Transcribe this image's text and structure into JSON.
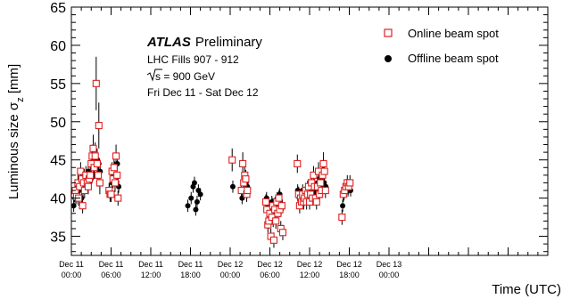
{
  "chart_data": {
    "type": "scatter",
    "ylabel": "Luminous size σ",
    "ylabel_sub": "z",
    "ylabel_unit": " [mm]",
    "xlabel": "Time (UTC)",
    "ylim": [
      32.5,
      65
    ],
    "y_major_ticks": [
      35,
      40,
      45,
      50,
      55,
      60,
      65
    ],
    "xlim_hours": [
      0,
      72
    ],
    "x_major_ticks": [
      {
        "h": 0,
        "line1": "Dec 11",
        "line2": "00:00"
      },
      {
        "h": 6,
        "line1": "Dec 11",
        "line2": "06:00"
      },
      {
        "h": 12,
        "line1": "Dec 11",
        "line2": "12:00"
      },
      {
        "h": 18,
        "line1": "Dec 11",
        "line2": "18:00"
      },
      {
        "h": 24,
        "line1": "Dec 12",
        "line2": "00:00"
      },
      {
        "h": 30,
        "line1": "Dec 12",
        "line2": "06:00"
      },
      {
        "h": 36,
        "line1": "Dec 12",
        "line2": "12:00"
      },
      {
        "h": 42,
        "line1": "Dec 12",
        "line2": "18:00"
      },
      {
        "h": 48,
        "line1": "Dec 13",
        "line2": "00:00"
      }
    ],
    "annotation": {
      "atlas": "ATLAS",
      "prelim": "Preliminary",
      "fills": "LHC Fills 907 - 912",
      "energy_root": "s",
      "energy_rest": " = 900 GeV",
      "dates": "Fri Dec 11 - Sat Dec 12"
    },
    "legend_position": "top-right",
    "series": [
      {
        "name": "Online beam spot",
        "marker": "open-square",
        "color": "#dd2222",
        "points": [
          {
            "x": 0.45,
            "y": 40.5,
            "e": 1.0
          },
          {
            "x": 0.6,
            "y": 41.0,
            "e": 1.0
          },
          {
            "x": 0.8,
            "y": 40.2,
            "e": 1.0
          },
          {
            "x": 1.0,
            "y": 42.0,
            "e": 1.2
          },
          {
            "x": 1.1,
            "y": 40.0,
            "e": 1.0
          },
          {
            "x": 1.25,
            "y": 41.5,
            "e": 1.0
          },
          {
            "x": 1.4,
            "y": 43.5,
            "e": 1.2
          },
          {
            "x": 1.6,
            "y": 42.5,
            "e": 1.0
          },
          {
            "x": 1.7,
            "y": 39.0,
            "e": 1.0
          },
          {
            "x": 1.85,
            "y": 42.0,
            "e": 1.0
          },
          {
            "x": 2.0,
            "y": 41.0,
            "e": 1.0
          },
          {
            "x": 2.2,
            "y": 43.0,
            "e": 1.2
          },
          {
            "x": 2.4,
            "y": 42.0,
            "e": 1.0
          },
          {
            "x": 2.55,
            "y": 41.5,
            "e": 1.0
          },
          {
            "x": 2.7,
            "y": 42.5,
            "e": 1.2
          },
          {
            "x": 2.85,
            "y": 43.0,
            "e": 1.2
          },
          {
            "x": 3.0,
            "y": 44.5,
            "e": 1.5
          },
          {
            "x": 3.15,
            "y": 45.5,
            "e": 1.5
          },
          {
            "x": 3.3,
            "y": 46.5,
            "e": 1.8
          },
          {
            "x": 3.45,
            "y": 44.0,
            "e": 1.5
          },
          {
            "x": 3.6,
            "y": 45.5,
            "e": 1.8
          },
          {
            "x": 3.75,
            "y": 55.0,
            "e": 3.5
          },
          {
            "x": 3.9,
            "y": 44.5,
            "e": 2.0
          },
          {
            "x": 4.05,
            "y": 43.0,
            "e": 1.5
          },
          {
            "x": 4.15,
            "y": 49.5,
            "e": 3.0
          },
          {
            "x": 4.3,
            "y": 42.0,
            "e": 1.5
          },
          {
            "x": 5.7,
            "y": 41.0,
            "e": 1.0
          },
          {
            "x": 5.85,
            "y": 40.5,
            "e": 1.0
          },
          {
            "x": 6.0,
            "y": 40.5,
            "e": 1.0
          },
          {
            "x": 6.15,
            "y": 43.5,
            "e": 1.2
          },
          {
            "x": 6.3,
            "y": 42.5,
            "e": 1.2
          },
          {
            "x": 6.45,
            "y": 44.0,
            "e": 1.2
          },
          {
            "x": 6.6,
            "y": 42.0,
            "e": 1.2
          },
          {
            "x": 6.75,
            "y": 45.5,
            "e": 1.5
          },
          {
            "x": 6.9,
            "y": 43.0,
            "e": 1.2
          },
          {
            "x": 7.05,
            "y": 40.0,
            "e": 1.0
          },
          {
            "x": 24.3,
            "y": 45.0,
            "e": 1.5
          },
          {
            "x": 25.7,
            "y": 41.0,
            "e": 1.2
          },
          {
            "x": 25.9,
            "y": 44.5,
            "e": 1.5
          },
          {
            "x": 26.05,
            "y": 42.0,
            "e": 1.2
          },
          {
            "x": 26.2,
            "y": 43.0,
            "e": 1.5
          },
          {
            "x": 26.35,
            "y": 42.5,
            "e": 1.2
          },
          {
            "x": 26.5,
            "y": 40.5,
            "e": 1.0
          },
          {
            "x": 26.6,
            "y": 41.0,
            "e": 1.0
          },
          {
            "x": 29.4,
            "y": 39.5,
            "e": 1.0
          },
          {
            "x": 29.55,
            "y": 38.5,
            "e": 1.0
          },
          {
            "x": 29.7,
            "y": 36.5,
            "e": 1.0
          },
          {
            "x": 29.85,
            "y": 37.0,
            "e": 1.0
          },
          {
            "x": 30.0,
            "y": 38.0,
            "e": 1.0
          },
          {
            "x": 30.15,
            "y": 35.0,
            "e": 1.0
          },
          {
            "x": 30.3,
            "y": 37.5,
            "e": 1.0
          },
          {
            "x": 30.45,
            "y": 39.0,
            "e": 1.0
          },
          {
            "x": 30.6,
            "y": 34.5,
            "e": 1.0
          },
          {
            "x": 30.75,
            "y": 38.5,
            "e": 1.0
          },
          {
            "x": 30.9,
            "y": 37.0,
            "e": 1.0
          },
          {
            "x": 31.05,
            "y": 39.5,
            "e": 1.0
          },
          {
            "x": 31.2,
            "y": 38.0,
            "e": 1.0
          },
          {
            "x": 31.35,
            "y": 40.0,
            "e": 1.0
          },
          {
            "x": 31.5,
            "y": 38.5,
            "e": 1.0
          },
          {
            "x": 31.65,
            "y": 36.0,
            "e": 1.0
          },
          {
            "x": 31.8,
            "y": 39.0,
            "e": 1.0
          },
          {
            "x": 31.95,
            "y": 35.5,
            "e": 1.0
          },
          {
            "x": 34.15,
            "y": 44.5,
            "e": 1.2
          },
          {
            "x": 34.35,
            "y": 40.5,
            "e": 1.0
          },
          {
            "x": 34.5,
            "y": 39.0,
            "e": 1.0
          },
          {
            "x": 34.65,
            "y": 40.0,
            "e": 1.0
          },
          {
            "x": 34.8,
            "y": 39.5,
            "e": 1.0
          },
          {
            "x": 34.95,
            "y": 40.5,
            "e": 1.0
          },
          {
            "x": 35.1,
            "y": 39.5,
            "e": 1.0
          },
          {
            "x": 35.25,
            "y": 40.0,
            "e": 1.0
          },
          {
            "x": 35.4,
            "y": 41.0,
            "e": 1.0
          },
          {
            "x": 35.55,
            "y": 39.5,
            "e": 1.0
          },
          {
            "x": 35.7,
            "y": 40.5,
            "e": 1.0
          },
          {
            "x": 35.85,
            "y": 41.5,
            "e": 1.0
          },
          {
            "x": 36.0,
            "y": 39.5,
            "e": 1.0
          },
          {
            "x": 36.15,
            "y": 40.5,
            "e": 1.0
          },
          {
            "x": 36.3,
            "y": 42.0,
            "e": 1.2
          },
          {
            "x": 36.45,
            "y": 40.0,
            "e": 1.0
          },
          {
            "x": 36.6,
            "y": 43.0,
            "e": 1.2
          },
          {
            "x": 36.75,
            "y": 41.5,
            "e": 1.0
          },
          {
            "x": 36.9,
            "y": 40.0,
            "e": 1.0
          },
          {
            "x": 37.05,
            "y": 39.5,
            "e": 1.0
          },
          {
            "x": 37.2,
            "y": 41.5,
            "e": 1.0
          },
          {
            "x": 37.35,
            "y": 43.5,
            "e": 1.2
          },
          {
            "x": 37.5,
            "y": 40.5,
            "e": 1.0
          },
          {
            "x": 37.65,
            "y": 42.0,
            "e": 1.0
          },
          {
            "x": 37.8,
            "y": 41.0,
            "e": 1.0
          },
          {
            "x": 37.95,
            "y": 43.0,
            "e": 1.2
          },
          {
            "x": 38.1,
            "y": 44.5,
            "e": 1.5
          },
          {
            "x": 38.25,
            "y": 43.5,
            "e": 1.2
          },
          {
            "x": 38.4,
            "y": 41.0,
            "e": 1.0
          },
          {
            "x": 40.9,
            "y": 37.5,
            "e": 1.0
          },
          {
            "x": 41.1,
            "y": 40.5,
            "e": 1.0
          },
          {
            "x": 41.3,
            "y": 41.0,
            "e": 1.0
          },
          {
            "x": 41.5,
            "y": 41.5,
            "e": 1.0
          },
          {
            "x": 41.7,
            "y": 42.0,
            "e": 1.0
          },
          {
            "x": 41.9,
            "y": 41.5,
            "e": 1.0
          },
          {
            "x": 42.1,
            "y": 42.0,
            "e": 1.0
          }
        ]
      },
      {
        "name": "Offline beam spot",
        "marker": "filled-circle",
        "color": "#000000",
        "points": [
          {
            "x": 0.35,
            "y": 39.0,
            "e": 0.8
          },
          {
            "x": 0.55,
            "y": 40.0,
            "e": 0.8
          },
          {
            "x": 0.75,
            "y": 41.0,
            "e": 0.8
          },
          {
            "x": 0.95,
            "y": 40.5,
            "e": 0.8
          },
          {
            "x": 1.15,
            "y": 42.0,
            "e": 0.8
          },
          {
            "x": 1.35,
            "y": 41.5,
            "e": 0.8
          },
          {
            "x": 1.55,
            "y": 40.0,
            "e": 0.8
          },
          {
            "x": 1.75,
            "y": 41.0,
            "e": 0.8
          },
          {
            "x": 1.95,
            "y": 43.0,
            "e": 0.8
          },
          {
            "x": 2.15,
            "y": 42.5,
            "e": 0.8
          },
          {
            "x": 2.35,
            "y": 42.0,
            "e": 0.8
          },
          {
            "x": 2.55,
            "y": 43.5,
            "e": 0.8
          },
          {
            "x": 2.75,
            "y": 42.0,
            "e": 0.8
          },
          {
            "x": 2.95,
            "y": 42.5,
            "e": 0.8
          },
          {
            "x": 3.15,
            "y": 44.5,
            "e": 0.8
          },
          {
            "x": 3.35,
            "y": 44.0,
            "e": 0.8
          },
          {
            "x": 3.55,
            "y": 45.0,
            "e": 0.8
          },
          {
            "x": 3.75,
            "y": 44.5,
            "e": 0.8
          },
          {
            "x": 3.95,
            "y": 45.0,
            "e": 0.8
          },
          {
            "x": 4.15,
            "y": 44.5,
            "e": 0.8
          },
          {
            "x": 4.35,
            "y": 43.5,
            "e": 0.8
          },
          {
            "x": 5.75,
            "y": 41.0,
            "e": 0.8
          },
          {
            "x": 5.95,
            "y": 40.5,
            "e": 0.8
          },
          {
            "x": 6.15,
            "y": 42.0,
            "e": 0.8
          },
          {
            "x": 6.35,
            "y": 43.0,
            "e": 0.8
          },
          {
            "x": 6.55,
            "y": 44.0,
            "e": 0.8
          },
          {
            "x": 6.75,
            "y": 42.5,
            "e": 0.8
          },
          {
            "x": 6.95,
            "y": 44.5,
            "e": 0.8
          },
          {
            "x": 7.15,
            "y": 41.5,
            "e": 0.8
          },
          {
            "x": 17.6,
            "y": 39.0,
            "e": 0.8
          },
          {
            "x": 18.1,
            "y": 40.0,
            "e": 0.8
          },
          {
            "x": 18.4,
            "y": 41.5,
            "e": 0.8
          },
          {
            "x": 18.6,
            "y": 42.0,
            "e": 0.8
          },
          {
            "x": 18.8,
            "y": 38.5,
            "e": 0.8
          },
          {
            "x": 19.0,
            "y": 39.5,
            "e": 0.8
          },
          {
            "x": 19.2,
            "y": 41.0,
            "e": 0.8
          },
          {
            "x": 19.5,
            "y": 40.5,
            "e": 0.8
          },
          {
            "x": 24.4,
            "y": 41.5,
            "e": 0.8
          },
          {
            "x": 25.8,
            "y": 40.0,
            "e": 0.8
          },
          {
            "x": 26.0,
            "y": 41.0,
            "e": 0.8
          },
          {
            "x": 26.2,
            "y": 42.5,
            "e": 0.8
          },
          {
            "x": 26.4,
            "y": 42.0,
            "e": 0.8
          },
          {
            "x": 26.6,
            "y": 41.5,
            "e": 0.8
          },
          {
            "x": 29.5,
            "y": 40.0,
            "e": 0.8
          },
          {
            "x": 29.7,
            "y": 39.0,
            "e": 0.8
          },
          {
            "x": 29.9,
            "y": 38.0,
            "e": 0.8
          },
          {
            "x": 30.1,
            "y": 38.5,
            "e": 0.8
          },
          {
            "x": 30.3,
            "y": 39.5,
            "e": 0.8
          },
          {
            "x": 30.5,
            "y": 37.0,
            "e": 0.8
          },
          {
            "x": 30.7,
            "y": 39.0,
            "e": 0.8
          },
          {
            "x": 30.9,
            "y": 38.0,
            "e": 0.8
          },
          {
            "x": 31.1,
            "y": 40.0,
            "e": 0.8
          },
          {
            "x": 31.3,
            "y": 39.5,
            "e": 0.8
          },
          {
            "x": 31.5,
            "y": 40.5,
            "e": 0.8
          },
          {
            "x": 31.7,
            "y": 38.5,
            "e": 0.8
          },
          {
            "x": 31.9,
            "y": 39.0,
            "e": 0.8
          },
          {
            "x": 34.2,
            "y": 41.0,
            "e": 0.8
          },
          {
            "x": 34.45,
            "y": 40.0,
            "e": 0.8
          },
          {
            "x": 34.7,
            "y": 40.5,
            "e": 0.8
          },
          {
            "x": 34.95,
            "y": 41.0,
            "e": 0.8
          },
          {
            "x": 35.2,
            "y": 40.5,
            "e": 0.8
          },
          {
            "x": 35.45,
            "y": 41.0,
            "e": 0.8
          },
          {
            "x": 35.7,
            "y": 41.5,
            "e": 0.8
          },
          {
            "x": 35.95,
            "y": 40.5,
            "e": 0.8
          },
          {
            "x": 36.2,
            "y": 41.0,
            "e": 0.8
          },
          {
            "x": 36.45,
            "y": 41.5,
            "e": 0.8
          },
          {
            "x": 36.7,
            "y": 40.5,
            "e": 0.8
          },
          {
            "x": 36.95,
            "y": 41.0,
            "e": 0.8
          },
          {
            "x": 37.2,
            "y": 42.0,
            "e": 0.8
          },
          {
            "x": 37.45,
            "y": 41.5,
            "e": 0.8
          },
          {
            "x": 37.7,
            "y": 42.5,
            "e": 0.8
          },
          {
            "x": 37.95,
            "y": 41.5,
            "e": 0.8
          },
          {
            "x": 38.2,
            "y": 42.0,
            "e": 0.8
          },
          {
            "x": 38.45,
            "y": 41.5,
            "e": 0.8
          },
          {
            "x": 41.0,
            "y": 39.0,
            "e": 0.8
          },
          {
            "x": 41.2,
            "y": 40.5,
            "e": 0.8
          },
          {
            "x": 41.4,
            "y": 41.0,
            "e": 0.8
          },
          {
            "x": 41.6,
            "y": 41.5,
            "e": 0.8
          },
          {
            "x": 41.8,
            "y": 41.0,
            "e": 0.8
          },
          {
            "x": 42.0,
            "y": 41.5,
            "e": 0.8
          },
          {
            "x": 42.2,
            "y": 41.0,
            "e": 0.8
          }
        ]
      }
    ]
  }
}
